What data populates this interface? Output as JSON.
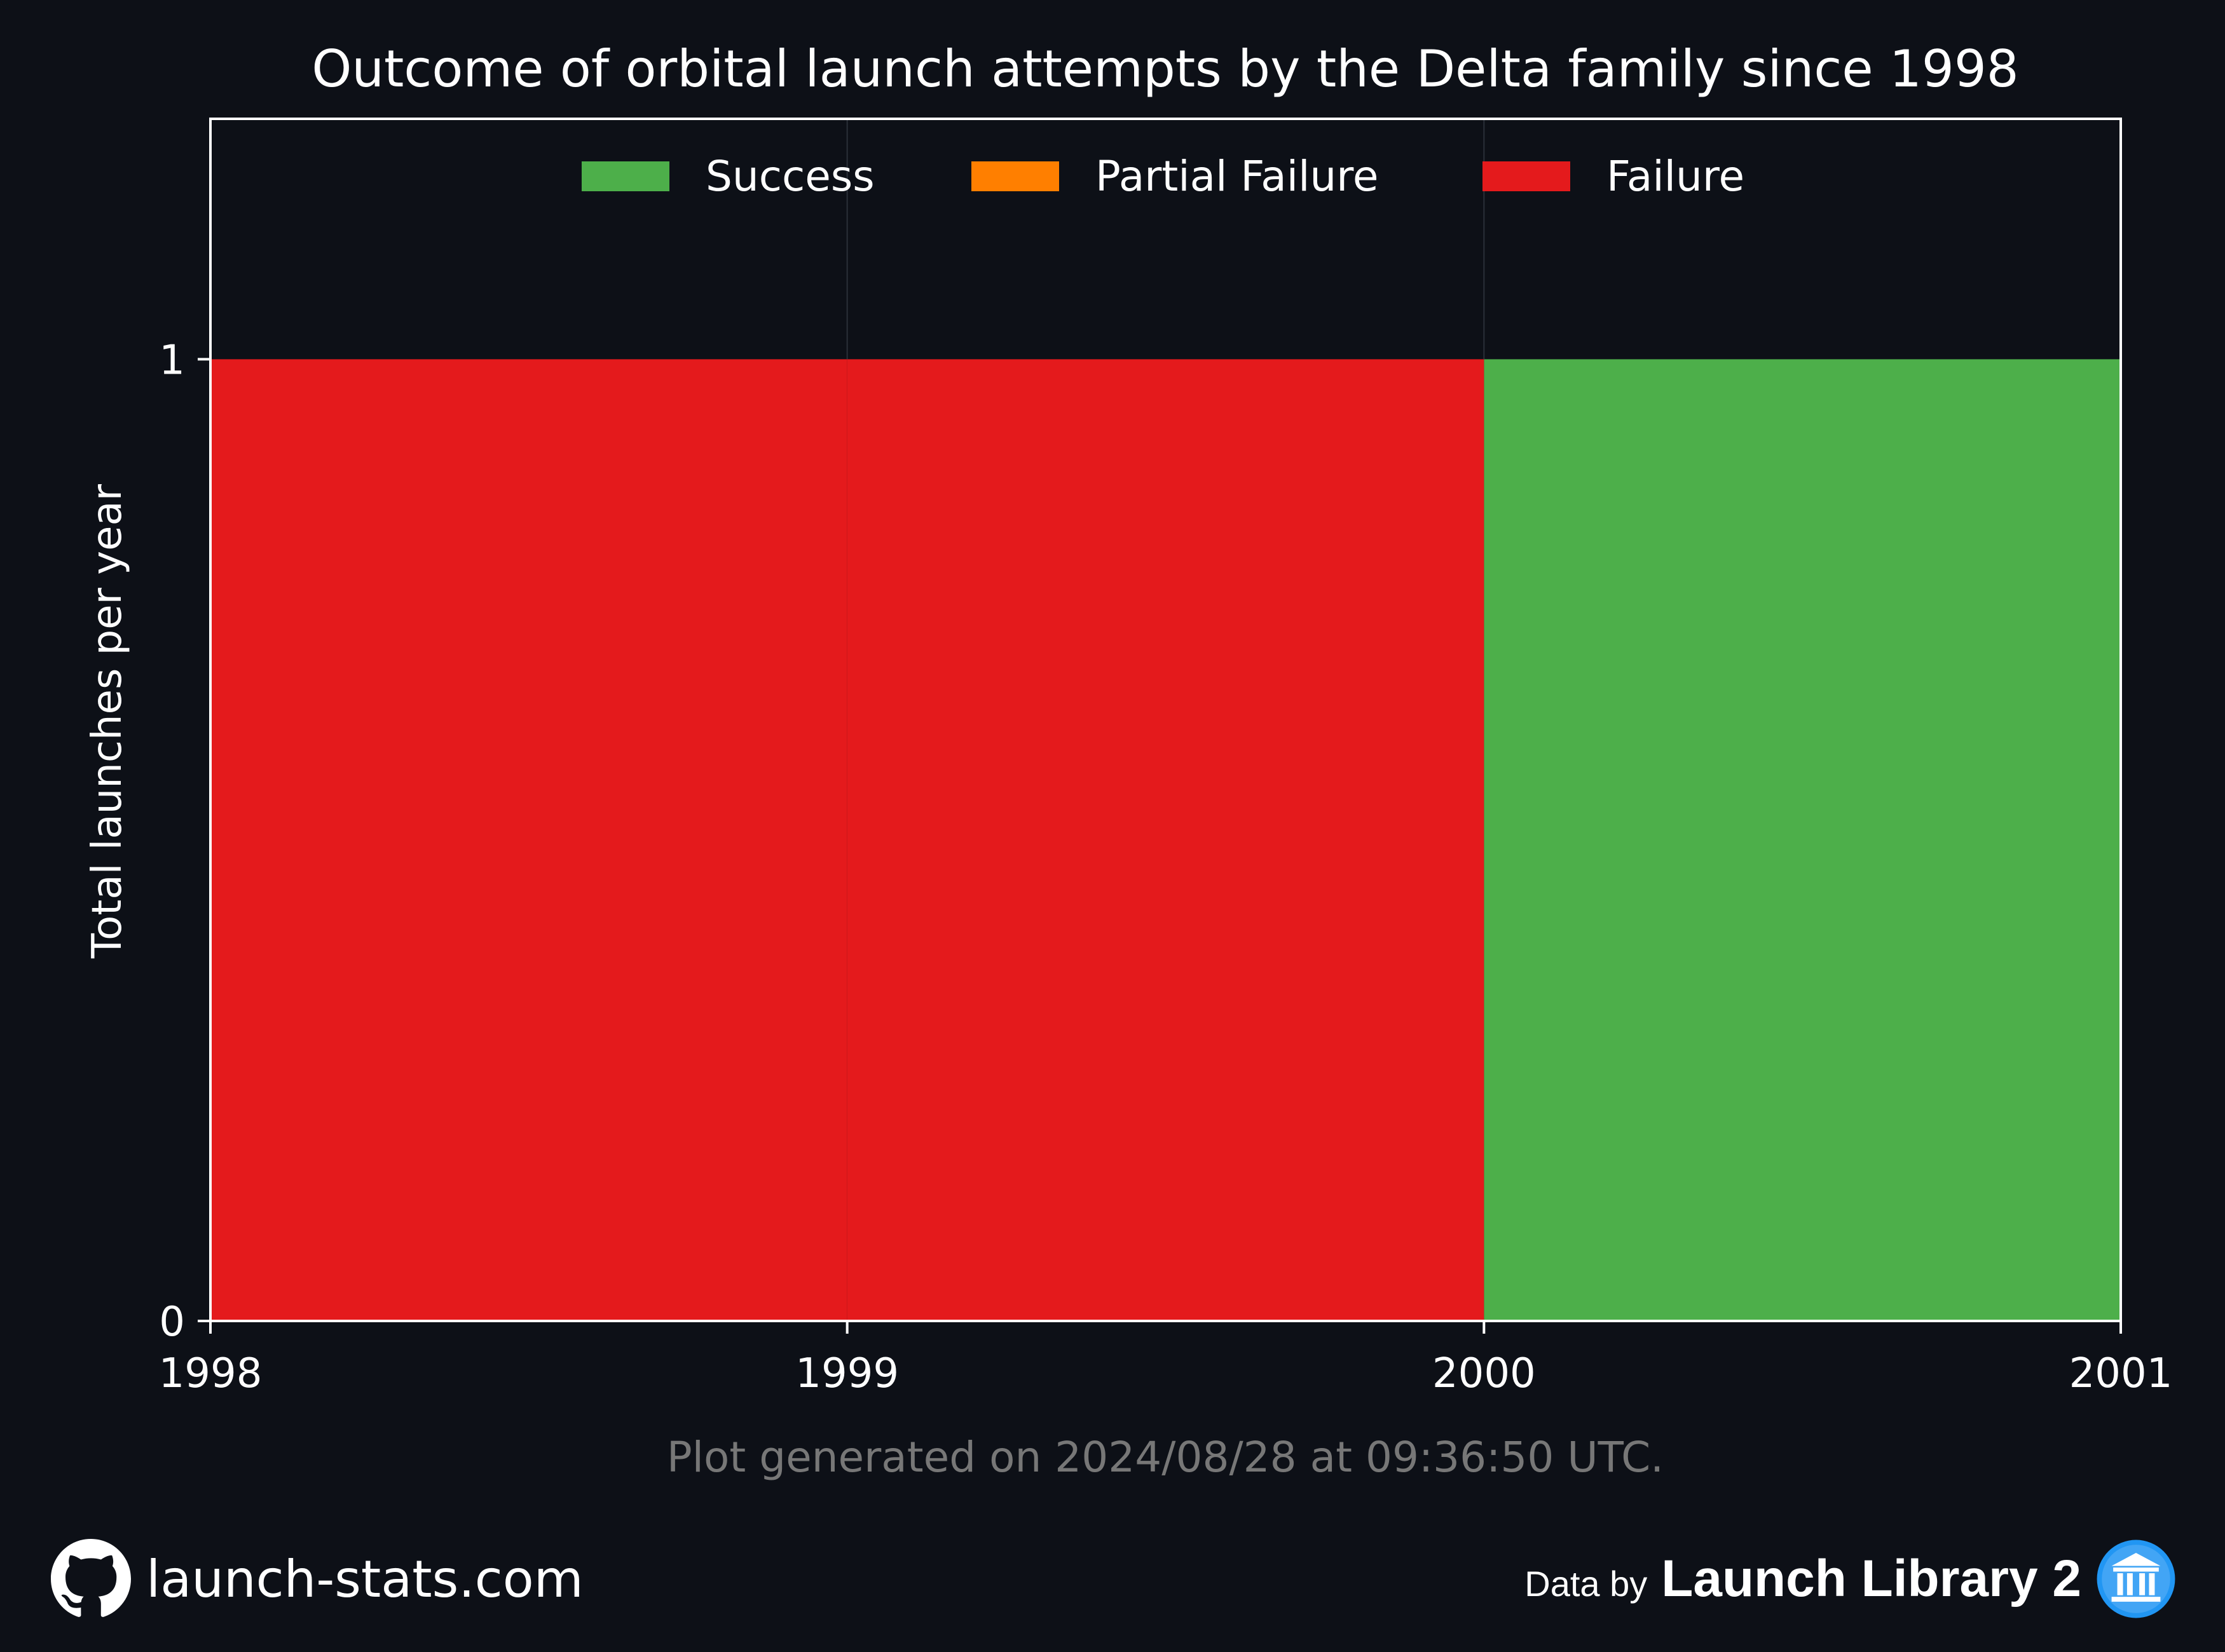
{
  "chart_data": {
    "type": "area",
    "title": "Outcome of orbital launch attempts by the Delta family since 1998",
    "xlabel": "",
    "ylabel": "Total launches per year",
    "x": [
      1998,
      1999,
      2000,
      2001
    ],
    "x_ticks": [
      "1998",
      "1999",
      "2000",
      "2001"
    ],
    "y_ticks": [
      "0",
      "1"
    ],
    "xlim": [
      1998,
      2001
    ],
    "ylim": [
      0,
      1.25
    ],
    "step": "post",
    "stacked": true,
    "grid": true,
    "legend_position": "top-center",
    "series": [
      {
        "name": "Success",
        "color": "#4daf4a",
        "values": [
          0,
          0,
          1,
          1
        ]
      },
      {
        "name": "Partial Failure",
        "color": "#ff7f00",
        "values": [
          0,
          0,
          0,
          0
        ]
      },
      {
        "name": "Failure",
        "color": "#e41a1c",
        "values": [
          1,
          1,
          0,
          0
        ]
      }
    ],
    "note": "Plot generated on 2024/08/28 at 09:36:50 UTC."
  },
  "footer": {
    "site": "launch-stats.com",
    "site_icon": "github-icon",
    "credit_prefix": "Data by",
    "credit_brand": "Launch Library 2",
    "credit_icon": "launch-library-icon"
  },
  "colors": {
    "background": "#0d1017",
    "text": "#ffffff",
    "note": "#777777",
    "grid": "#2a2f38"
  }
}
